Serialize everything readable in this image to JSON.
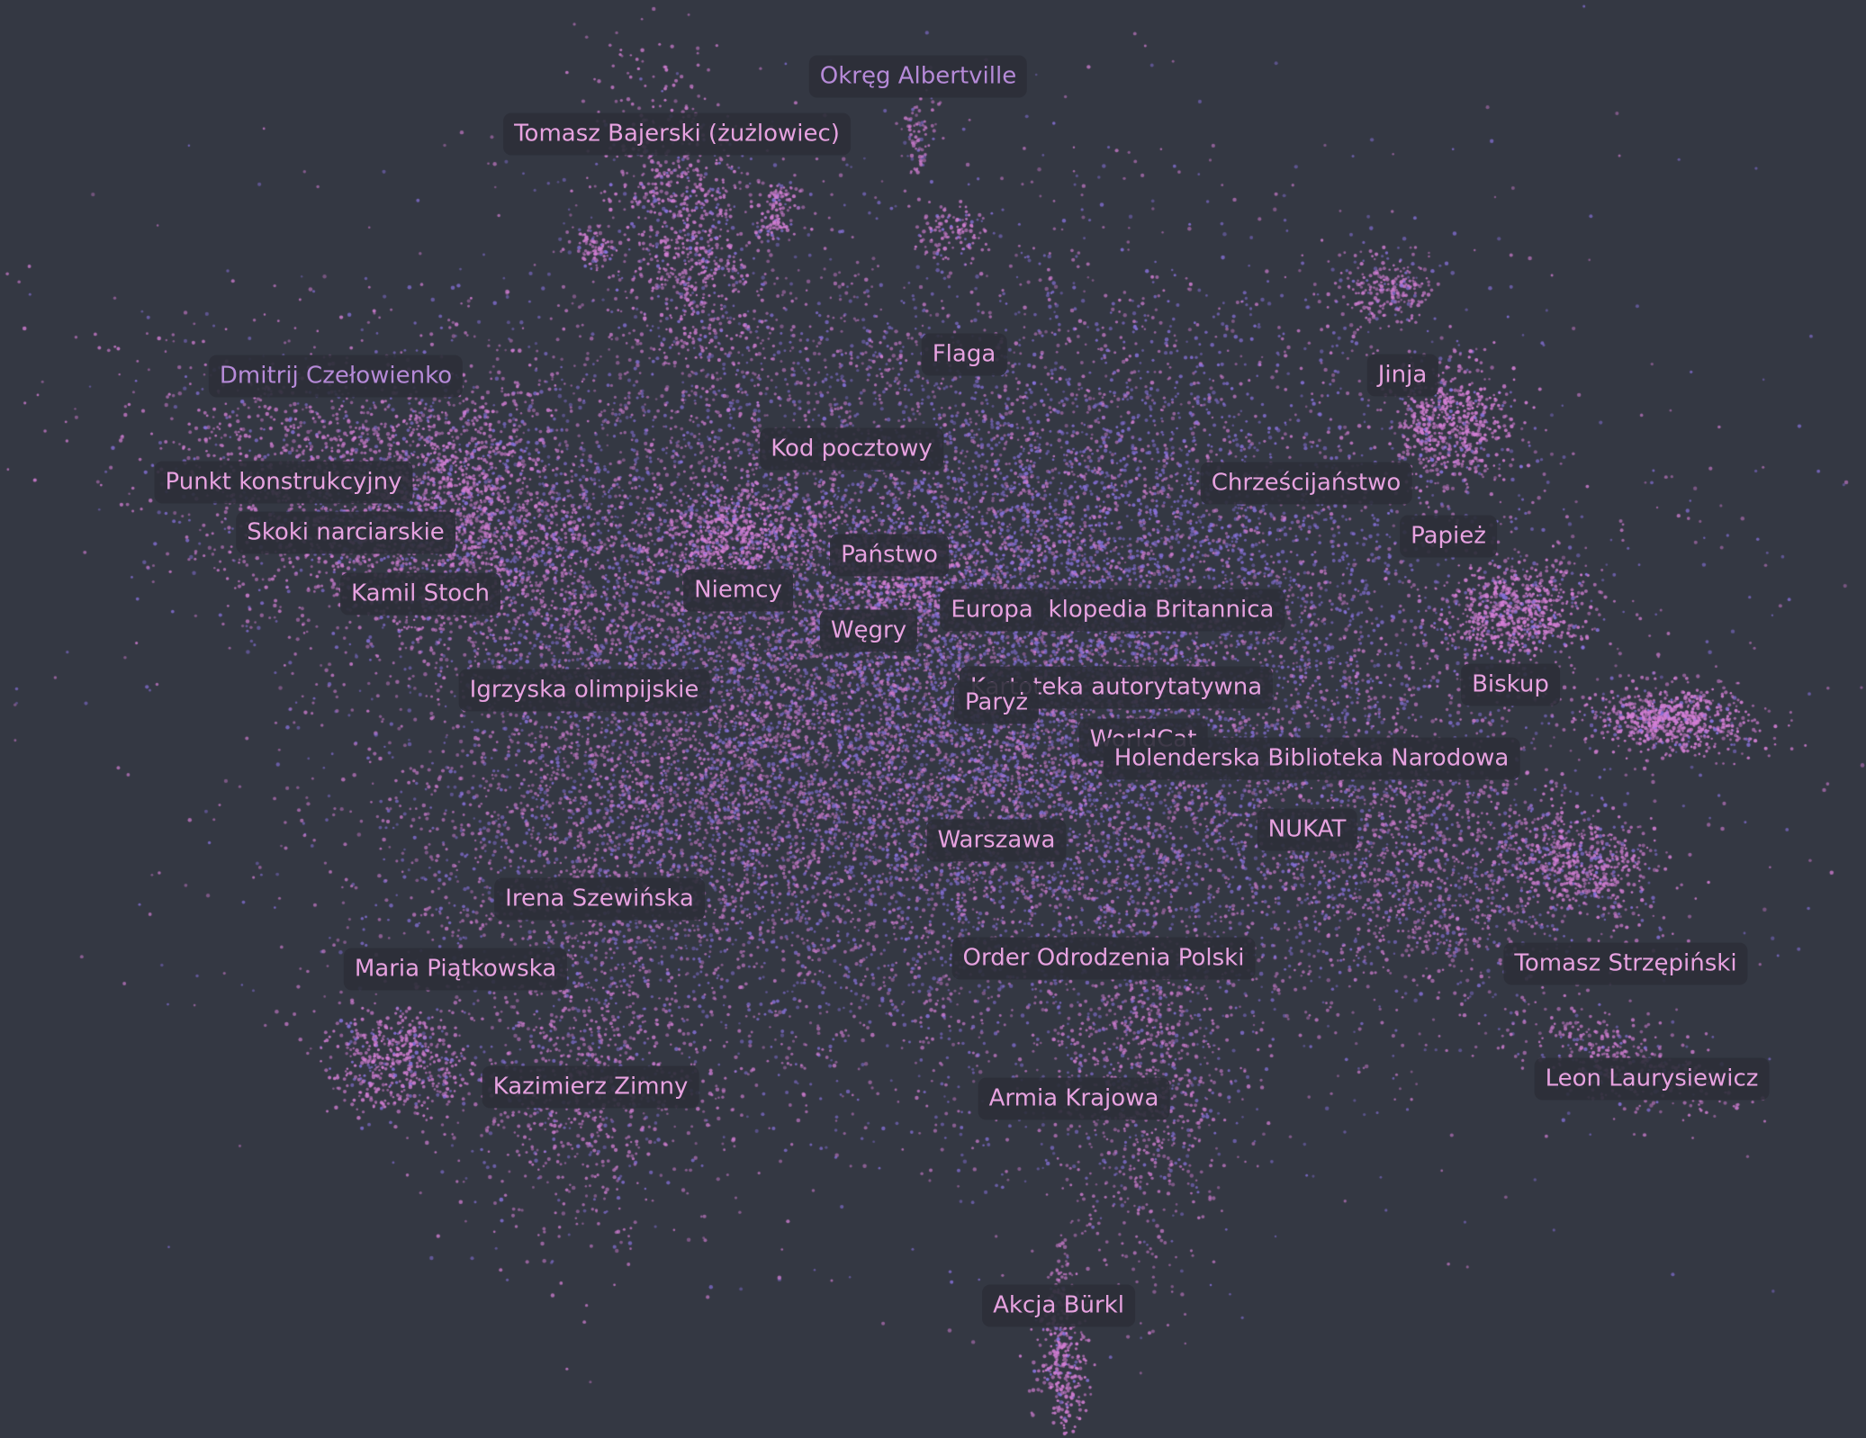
{
  "map_labels": [
    {
      "text": "Okręg Albertville",
      "tone": "dim"
    },
    {
      "text": "Tomasz Bajerski (żużlowiec)"
    },
    {
      "text": "Dmitrij Czełowienko",
      "tone": "dim"
    },
    {
      "text": "Flaga"
    },
    {
      "text": "Jinja"
    },
    {
      "text": "Kod pocztowy"
    },
    {
      "text": "Punkt konstrukcyjny"
    },
    {
      "text": "Chrześcijaństwo"
    },
    {
      "text": "Skoki narciarskie"
    },
    {
      "text": "Papież"
    },
    {
      "text": "Państwo"
    },
    {
      "text": "Kamil Stoch"
    },
    {
      "text": "Niemcy"
    },
    {
      "text": "Europa"
    },
    {
      "text": "klopedia Britannica"
    },
    {
      "text": "Węgry"
    },
    {
      "text": "Igrzyska olimpijskie"
    },
    {
      "text": "Kartoteka autorytatywna"
    },
    {
      "text": "Biskup"
    },
    {
      "text": "Paryż"
    },
    {
      "text": "WorldCat"
    },
    {
      "text": "Holenderska Biblioteka Narodowa"
    },
    {
      "text": "NUKAT"
    },
    {
      "text": "Warszawa"
    },
    {
      "text": "Irena Szewińska"
    },
    {
      "text": "Tomasz Strzępiński"
    },
    {
      "text": "Order Odrodzenia Polski"
    },
    {
      "text": "Maria Piątkowska"
    },
    {
      "text": "Leon Laurysiewicz"
    },
    {
      "text": "Kazimierz Zimny"
    },
    {
      "text": "Armia Krajowa"
    },
    {
      "text": "Akcja Bürkl"
    }
  ],
  "colors": {
    "background": "#343843",
    "point_pink": "#d57fd6",
    "point_violet": "#8c74e2",
    "label_text": "#e7a2e0",
    "label_text_dim": "#b68ad8"
  }
}
